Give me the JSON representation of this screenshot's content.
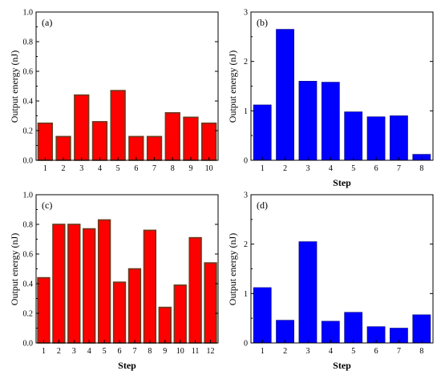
{
  "colors": {
    "red_fill": "#ff0000",
    "red_stroke": "#6b3a1e",
    "blue_fill": "#0000ff",
    "blue_stroke": "#00007a",
    "axis": "#000000"
  },
  "chart_data": [
    {
      "type": "bar",
      "panel": "(a)",
      "categories": [
        "1",
        "2",
        "3",
        "4",
        "5",
        "6",
        "7",
        "8",
        "9",
        "10"
      ],
      "values": [
        0.25,
        0.16,
        0.44,
        0.26,
        0.47,
        0.16,
        0.16,
        0.32,
        0.29,
        0.25
      ],
      "xlabel": "",
      "ylabel": "Output energy (nJ)",
      "ylim": [
        0,
        1.0
      ],
      "yticks": [
        "0.0",
        "0.2",
        "0.4",
        "0.6",
        "0.8",
        "1.0"
      ],
      "color": "#ff0000"
    },
    {
      "type": "bar",
      "panel": "(b)",
      "categories": [
        "1",
        "2",
        "3",
        "4",
        "5",
        "6",
        "7",
        "8"
      ],
      "values": [
        1.12,
        2.65,
        1.6,
        1.58,
        0.98,
        0.88,
        0.9,
        0.12
      ],
      "xlabel": "Step",
      "ylabel": "Output energy (nJ)",
      "ylim": [
        0,
        3
      ],
      "yticks": [
        "0",
        "1",
        "2",
        "3"
      ],
      "color": "#0000ff"
    },
    {
      "type": "bar",
      "panel": "(c)",
      "categories": [
        "1",
        "2",
        "3",
        "4",
        "5",
        "6",
        "7",
        "8",
        "9",
        "10",
        "11",
        "12"
      ],
      "values": [
        0.44,
        0.8,
        0.8,
        0.77,
        0.83,
        0.41,
        0.5,
        0.76,
        0.24,
        0.39,
        0.71,
        0.54
      ],
      "xlabel": "Step",
      "ylabel": "Output energy (nJ)",
      "ylim": [
        0,
        1.0
      ],
      "yticks": [
        "0.0",
        "0.2",
        "0.4",
        "0.6",
        "0.8",
        "1.0"
      ],
      "color": "#ff0000"
    },
    {
      "type": "bar",
      "panel": "(d)",
      "categories": [
        "1",
        "2",
        "3",
        "4",
        "5",
        "6",
        "7",
        "8"
      ],
      "values": [
        1.12,
        0.46,
        2.05,
        0.44,
        0.62,
        0.33,
        0.3,
        0.57
      ],
      "xlabel": "Step",
      "ylabel": "Output energy (nJ)",
      "ylim": [
        0,
        3
      ],
      "yticks": [
        "0",
        "1",
        "2",
        "3"
      ],
      "color": "#0000ff"
    }
  ]
}
